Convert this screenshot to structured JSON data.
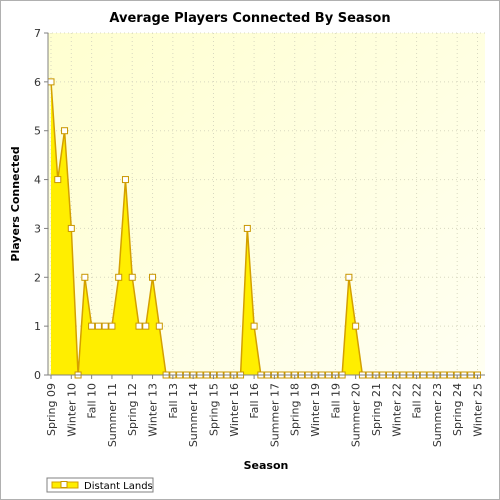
{
  "chart_data": {
    "type": "area",
    "title": "Average Players Connected By Season",
    "xlabel": "Season",
    "ylabel": "Players Connected",
    "ylim": [
      0,
      7
    ],
    "yticks": [
      "0",
      "1",
      "2",
      "3",
      "4",
      "5",
      "6",
      "7"
    ],
    "x_tick_labels": [
      "Spring 09",
      "Winter 10",
      "Fall 10",
      "Summer 11",
      "Spring 12",
      "Winter 13",
      "Fall 13",
      "Summer 14",
      "Spring 15",
      "Winter 16",
      "Fall 16",
      "Summer 17",
      "Spring 18",
      "Winter 19",
      "Fall 19",
      "Summer 20",
      "Spring 21",
      "Winter 22",
      "Fall 22",
      "Summer 23",
      "Spring 24",
      "Winter 25"
    ],
    "grid": true,
    "legend_position": "bottom-left",
    "series": [
      {
        "name": "Distant Lands",
        "color": "#ffee00",
        "line_color": "#d4a000",
        "values": [
          6,
          4,
          5,
          3,
          0,
          2,
          1,
          1,
          1,
          1,
          2,
          4,
          2,
          1,
          1,
          2,
          1,
          0,
          0,
          0,
          0,
          0,
          0,
          0,
          0,
          0,
          0,
          0,
          0,
          3,
          1,
          0,
          0,
          0,
          0,
          0,
          0,
          0,
          0,
          0,
          0,
          0,
          0,
          0,
          2,
          1,
          0,
          0,
          0,
          0,
          0,
          0,
          0,
          0,
          0,
          0,
          0,
          0,
          0,
          0,
          0,
          0,
          0,
          0
        ]
      }
    ]
  }
}
